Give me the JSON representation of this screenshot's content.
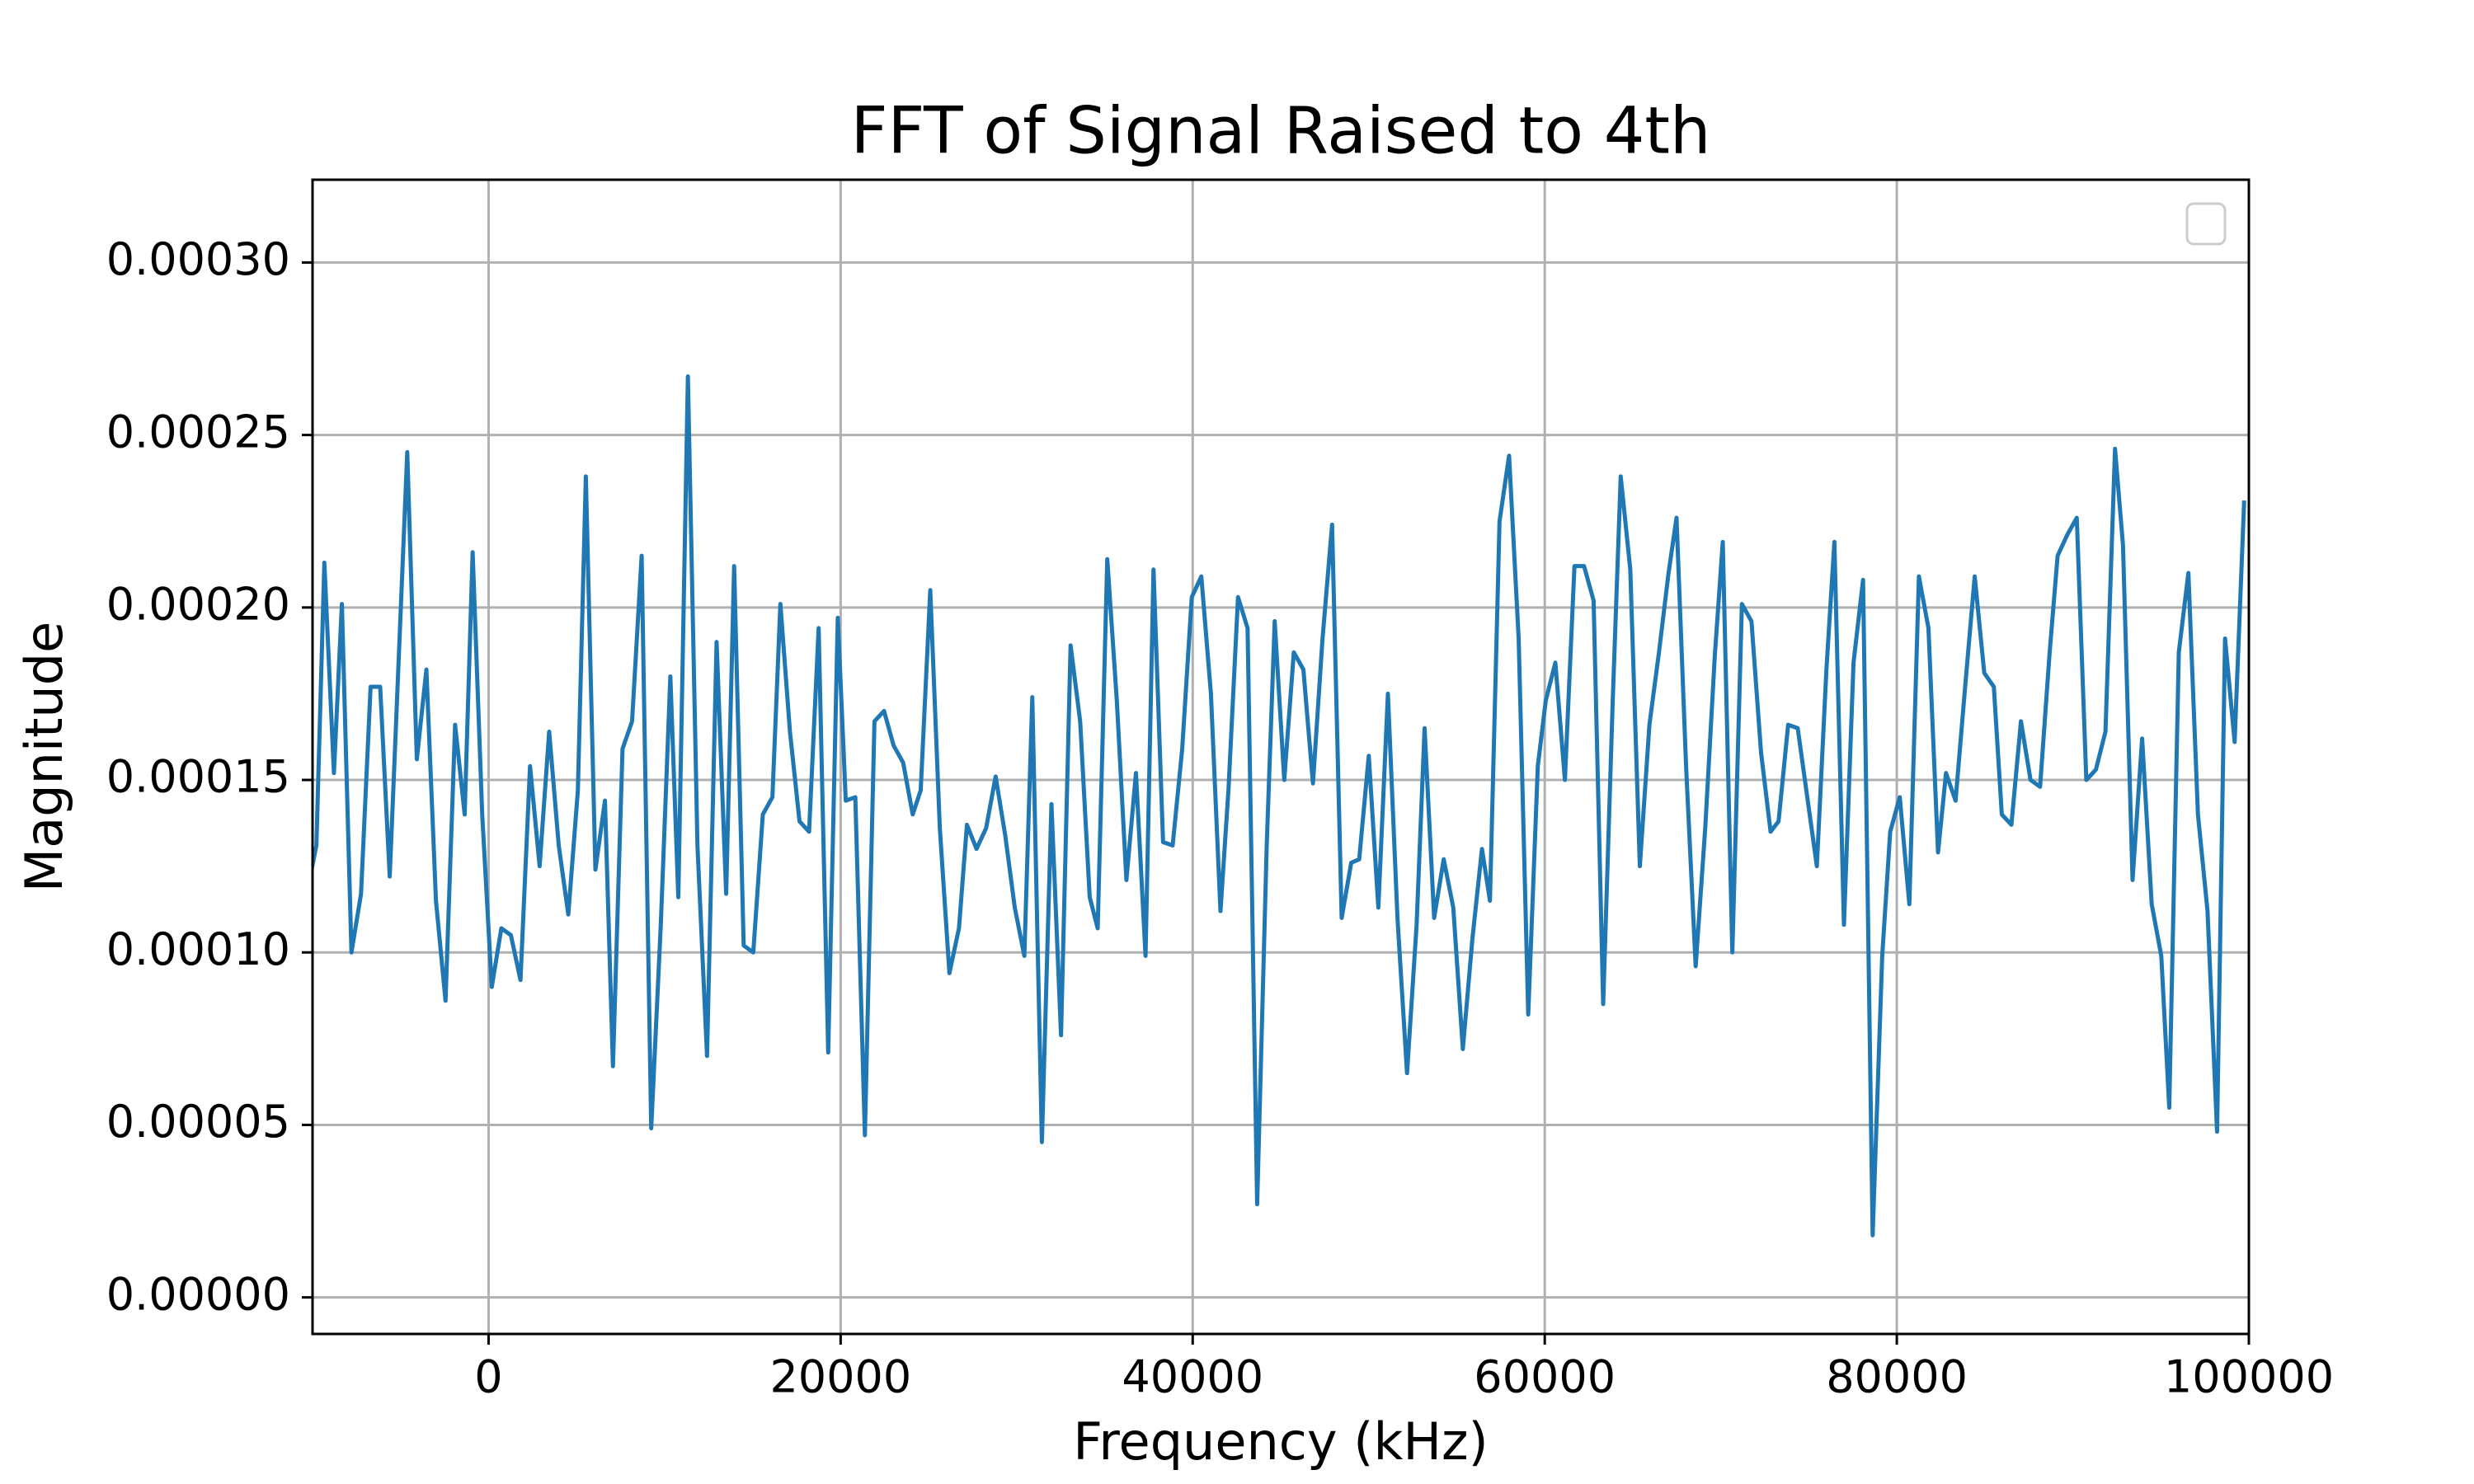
{
  "chart_data": {
    "type": "line",
    "title": "FFT of Signal Raised to 4th",
    "x_label": "Frequency (kHz)",
    "y_label": "Magnitude",
    "x": [
      -10054,
      -9782,
      -9330,
      -8786,
      -8333,
      -7790,
      -7246,
      -6703,
      -6159,
      -5616,
      -4620,
      -4076,
      -3533,
      -2989,
      -2446,
      -1902,
      -1359,
      -906,
      -362,
      181,
      725,
      1268,
      1812,
      2355,
      2899,
      3442,
      3986,
      4529,
      5073,
      5525,
      6069,
      6612,
      7065,
      7609,
      8152,
      8696,
      9239,
      9783,
      10326,
      10779,
      11323,
      11866,
      12410,
      12953,
      13497,
      13950,
      14493,
      15037,
      15580,
      16124,
      16577,
      17120,
      17664,
      18207,
      18751,
      19294,
      19838,
      20291,
      20834,
      21378,
      21921,
      22465,
      23008,
      23552,
      24095,
      24548,
      25092,
      25635,
      26179,
      26722,
      27175,
      27719,
      28262,
      28806,
      29349,
      29893,
      30436,
      30889,
      31433,
      31976,
      32520,
      33063,
      33607,
      34150,
      34603,
      35147,
      35690,
      36234,
      36777,
      37321,
      37774,
      38317,
      38861,
      39404,
      39948,
      40491,
      41035,
      41578,
      42031,
      42575,
      43118,
      43662,
      44205,
      44658,
      45202,
      45745,
      46289,
      46832,
      47376,
      47919,
      48463,
      49006,
      49459,
      50003,
      50546,
      51090,
      51633,
      52177,
      52720,
      53173,
      53717,
      54260,
      54804,
      55347,
      55891,
      56434,
      56887,
      57431,
      57974,
      58518,
      59061,
      59605,
      60058,
      60601,
      61145,
      61688,
      62232,
      62775,
      63319,
      63862,
      64315,
      64859,
      65402,
      65946,
      66489,
      67033,
      67486,
      68029,
      68573,
      69116,
      69660,
      70113,
      70656,
      71200,
      71743,
      72287,
      72830,
      73283,
      73827,
      74370,
      74914,
      75457,
      76001,
      76454,
      76997,
      77541,
      78084,
      78628,
      79171,
      79624,
      80168,
      80711,
      81255,
      81798,
      82342,
      82795,
      83338,
      83882,
      84425,
      84969,
      85512,
      85965,
      86509,
      87052,
      87596,
      88139,
      88683,
      89136,
      89679,
      90223,
      90766,
      91310,
      91853,
      92397,
      92850,
      93393,
      93937,
      94480,
      95024,
      95477,
      96020,
      96564,
      97107,
      97651,
      98194,
      98647,
      99191,
      99734
    ],
    "series": [
      {
        "color": "#1f77b4",
        "values": [
          0.000124,
          0.000131,
          0.000213,
          0.000152,
          0.000201,
          0.0001,
          0.000117,
          0.000177,
          0.000177,
          0.000122,
          0.000245,
          0.000156,
          0.000182,
          0.000115,
          8.6e-05,
          0.000166,
          0.00014,
          0.000216,
          0.00014,
          9e-05,
          0.000107,
          0.000105,
          9.2e-05,
          0.000154,
          0.000125,
          0.000164,
          0.000131,
          0.000111,
          0.000147,
          0.000238,
          0.000124,
          0.000144,
          6.7e-05,
          0.000159,
          0.000167,
          0.000215,
          4.9e-05,
          0.000108,
          0.00018,
          0.000116,
          0.000267,
          0.000131,
          7e-05,
          0.00019,
          0.000117,
          0.000212,
          0.000102,
          0.0001,
          0.00014,
          0.000145,
          0.000201,
          0.000164,
          0.000138,
          0.000135,
          0.000194,
          7.1e-05,
          0.000197,
          0.000144,
          0.000145,
          4.7e-05,
          0.000167,
          0.00017,
          0.00016,
          0.000155,
          0.00014,
          0.000147,
          0.000205,
          0.000136,
          9.4e-05,
          0.000107,
          0.000137,
          0.00013,
          0.000136,
          0.000151,
          0.000134,
          0.000113,
          9.9e-05,
          0.000174,
          4.5e-05,
          0.000143,
          7.6e-05,
          0.000189,
          0.000167,
          0.000116,
          0.000107,
          0.000214,
          0.000173,
          0.000121,
          0.000152,
          9.9e-05,
          0.000211,
          0.000132,
          0.000131,
          0.000159,
          0.000203,
          0.000209,
          0.000175,
          0.000112,
          0.000147,
          0.000203,
          0.000194,
          2.7e-05,
          0.000131,
          0.000196,
          0.00015,
          0.000187,
          0.000182,
          0.000149,
          0.000191,
          0.000224,
          0.00011,
          0.000126,
          0.000127,
          0.000157,
          0.000113,
          0.000175,
          0.00011,
          6.5e-05,
          0.000108,
          0.000165,
          0.00011,
          0.000127,
          0.000113,
          7.2e-05,
          0.000104,
          0.00013,
          0.000115,
          0.000225,
          0.000244,
          0.000191,
          8.2e-05,
          0.000154,
          0.000173,
          0.000184,
          0.00015,
          0.000212,
          0.000212,
          0.000202,
          8.5e-05,
          0.000173,
          0.000238,
          0.000211,
          0.000125,
          0.000166,
          0.000187,
          0.00021,
          0.000226,
          0.000154,
          9.6e-05,
          0.000136,
          0.000186,
          0.000219,
          0.0001,
          0.000201,
          0.000196,
          0.000158,
          0.000135,
          0.000138,
          0.000166,
          0.000165,
          0.000145,
          0.000125,
          0.000182,
          0.000219,
          0.000108,
          0.000184,
          0.000208,
          1.8e-05,
          9.9e-05,
          0.000135,
          0.000145,
          0.000114,
          0.000209,
          0.000194,
          0.000129,
          0.000152,
          0.000144,
          0.000177,
          0.000209,
          0.000181,
          0.000177,
          0.00014,
          0.000137,
          0.000167,
          0.00015,
          0.000148,
          0.000187,
          0.000215,
          0.000221,
          0.000226,
          0.00015,
          0.000153,
          0.000164,
          0.000246,
          0.000218,
          0.000121,
          0.000162,
          0.000114,
          9.9e-05,
          5.5e-05,
          0.000187,
          0.00021,
          0.00014,
          0.000112,
          4.8e-05,
          0.000191,
          0.000161,
          0.000231
        ]
      }
    ],
    "xlim": [
      -10000,
      100000
    ],
    "xticks": [
      0,
      20000,
      40000,
      60000,
      80000,
      100000
    ],
    "ylim": [
      -1.06e-05,
      0.000324
    ],
    "yticks": [
      {
        "value": 0,
        "label": "0.00000"
      },
      {
        "value": 5e-05,
        "label": "0.00005"
      },
      {
        "value": 0.0001,
        "label": "0.00010"
      },
      {
        "value": 0.00015,
        "label": "0.00015"
      },
      {
        "value": 0.0002,
        "label": "0.00020"
      },
      {
        "value": 0.00025,
        "label": "0.00025"
      },
      {
        "value": 0.0003,
        "label": "0.00030"
      }
    ],
    "grid": true
  }
}
